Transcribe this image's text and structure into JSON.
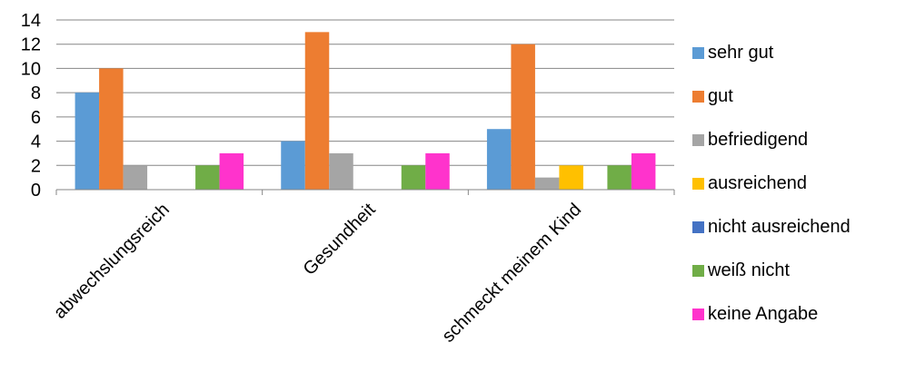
{
  "chart_data": {
    "type": "bar",
    "categories": [
      "abwechslungsreich",
      "Gesundheit",
      "schmeckt meinem Kind"
    ],
    "series": [
      {
        "name": "sehr gut",
        "color": "#5B9BD5",
        "values": [
          8,
          4,
          5
        ]
      },
      {
        "name": "gut",
        "color": "#ED7D31",
        "values": [
          10,
          13,
          12
        ]
      },
      {
        "name": "befriedigend",
        "color": "#A5A5A5",
        "values": [
          2,
          3,
          1
        ]
      },
      {
        "name": "ausreichend",
        "color": "#FFC000",
        "values": [
          0,
          0,
          2
        ]
      },
      {
        "name": "nicht ausreichend",
        "color": "#4472C4",
        "values": [
          0,
          0,
          0
        ]
      },
      {
        "name": "weiß nicht",
        "color": "#70AD47",
        "values": [
          2,
          2,
          2
        ]
      },
      {
        "name": "keine Angabe",
        "color": "#FF33CC",
        "values": [
          3,
          3,
          3
        ]
      }
    ],
    "yticks": [
      "0",
      "2",
      "4",
      "6",
      "8",
      "10",
      "12",
      "14"
    ],
    "ylim": [
      0,
      14
    ],
    "grid": true,
    "legend_position": "right",
    "title": "",
    "xlabel": "",
    "ylabel": ""
  }
}
